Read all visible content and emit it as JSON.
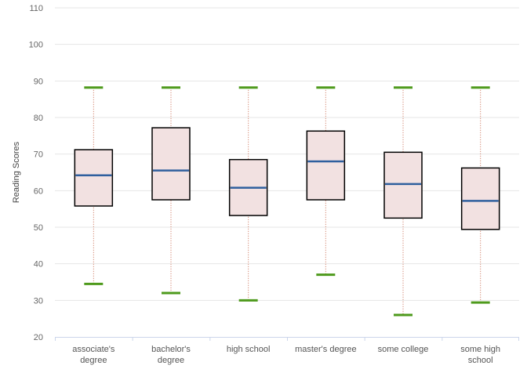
{
  "chart_data": {
    "type": "boxplot",
    "title": "",
    "xlabel": "",
    "ylabel": "Reading Scores",
    "ylim": [
      20,
      110
    ],
    "yticks": [
      20,
      30,
      40,
      50,
      60,
      70,
      80,
      90,
      100,
      110
    ],
    "grid": true,
    "categories": [
      [
        "associate's",
        "degree"
      ],
      [
        "bachelor's",
        "degree"
      ],
      [
        "high school"
      ],
      [
        "master's degree"
      ],
      [
        "some college"
      ],
      [
        "some high",
        "school"
      ]
    ],
    "boxes": [
      {
        "low": 34.5,
        "q1": 55.8,
        "median": 64.2,
        "q3": 71.2,
        "high": 88.2
      },
      {
        "low": 32.0,
        "q1": 57.5,
        "median": 65.5,
        "q3": 77.2,
        "high": 88.2
      },
      {
        "low": 30.0,
        "q1": 53.2,
        "median": 60.8,
        "q3": 68.5,
        "high": 88.2
      },
      {
        "low": 37.0,
        "q1": 57.5,
        "median": 68.0,
        "q3": 76.3,
        "high": 88.2
      },
      {
        "low": 26.0,
        "q1": 52.5,
        "median": 61.8,
        "q3": 70.5,
        "high": 88.2
      },
      {
        "low": 29.4,
        "q1": 49.4,
        "median": 57.2,
        "q3": 66.2,
        "high": 88.2
      }
    ],
    "colors": {
      "box_fill": "#f2e1e1",
      "box_stroke": "#000000",
      "median": "#2f5f9e",
      "whisker": "#c9694f",
      "whisker_cap": "#4e9a1c",
      "grid": "#e6e6e6",
      "x_axis": "#ccd6eb"
    }
  }
}
